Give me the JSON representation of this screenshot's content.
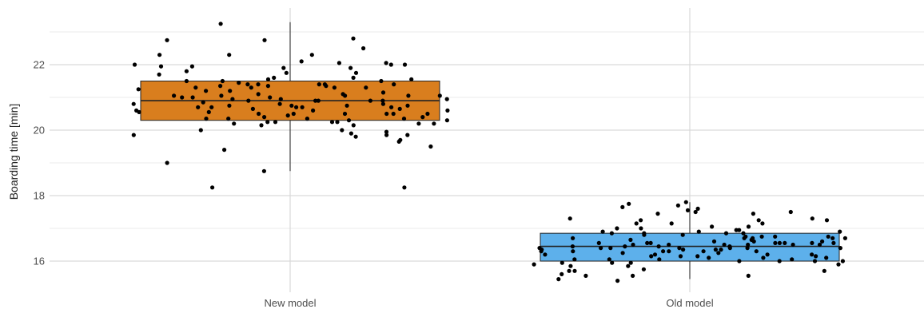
{
  "chart_data": {
    "type": "boxplot",
    "ylabel": "Boarding time [min]",
    "xlabel": "",
    "ylim": [
      15.2,
      23.8
    ],
    "yticks": [
      16,
      18,
      20,
      22
    ],
    "grid": true,
    "categories": [
      "New model",
      "Old model"
    ],
    "boxes": [
      {
        "category": "New model",
        "color": "#D97E1E",
        "whisker_low": 18.75,
        "q1": 20.3,
        "median": 20.9,
        "q3": 21.5,
        "whisker_high": 23.3
      },
      {
        "category": "Old model",
        "color": "#5DB0EB",
        "whisker_low": 15.45,
        "q1": 16.0,
        "median": 16.45,
        "q3": 16.85,
        "whisker_high": 17.8
      }
    ],
    "points": [
      {
        "category": "New model",
        "values": [
          22.05,
          20.35,
          20.25,
          20.3,
          20.75,
          21.05,
          21.5,
          21.55,
          19.8,
          21.4,
          21.3,
          21.45,
          20.8,
          21.0,
          20.9,
          21.2,
          20.7,
          21.5,
          20.75,
          19.65,
          19.0,
          20.95,
          22.5,
          21.4,
          21.35,
          20.9,
          20.4,
          19.85,
          22.75,
          20.25,
          20.7,
          21.8,
          21.0,
          20.95,
          21.3,
          20.75,
          21.05,
          20.8,
          20.9,
          20.85,
          21.0,
          21.05,
          22.0,
          20.75,
          22.1,
          20.65,
          20.15,
          22.75,
          20.9,
          21.95,
          21.9,
          21.1,
          21.6,
          18.25,
          20.65,
          20.5,
          20.4,
          19.5,
          21.55,
          20.55,
          20.7,
          21.05,
          21.1,
          20.8,
          21.5,
          23.25,
          18.75,
          20.0,
          22.05,
          21.9,
          20.7,
          19.7,
          21.35,
          22.8,
          21.25,
          20.35,
          21.6,
          20.5,
          20.0,
          19.4,
          21.75,
          20.2,
          21.3,
          20.7,
          20.2,
          21.4,
          20.6,
          21.3,
          20.25,
          21.4,
          20.5,
          20.3,
          21.05,
          20.9,
          20.95,
          20.45,
          21.95,
          22.3,
          20.5,
          22.0,
          20.6,
          19.9,
          21.7,
          20.5,
          22.3,
          20.55,
          20.25,
          19.95,
          21.2,
          18.25,
          20.35,
          19.85,
          20.15,
          21.35,
          22.0,
          20.2,
          21.75,
          20.5,
          21.15,
          20.6,
          21.4,
          20.35,
          22.3,
          19.85
        ]
      },
      {
        "category": "Old model",
        "values": [
          15.95,
          16.9,
          16.95,
          17.05,
          16.7,
          17.8,
          16.95,
          16.6,
          16.4,
          16.7,
          17.05,
          16.55,
          16.75,
          17.15,
          16.5,
          15.55,
          16.85,
          16.55,
          16.05,
          17.15,
          15.7,
          16.3,
          15.9,
          17.45,
          17.5,
          16.5,
          16.55,
          15.55,
          16.8,
          16.35,
          16.05,
          17.3,
          17.25,
          15.9,
          16.5,
          16.2,
          15.95,
          16.3,
          17.3,
          15.85,
          16.55,
          16.3,
          16.6,
          15.75,
          16.4,
          16.15,
          15.7,
          15.95,
          15.6,
          16.55,
          16.8,
          16.0,
          16.9,
          16.4,
          16.35,
          16.9,
          16.85,
          16.1,
          15.85,
          17.5,
          17.65,
          16.15,
          16.75,
          17.6,
          16.65,
          16.5,
          15.4,
          15.7,
          16.75,
          16.3,
          16.45,
          17.55,
          17.7,
          16.55,
          16.7,
          16.4,
          16.6,
          17.0,
          16.3,
          16.5,
          16.25,
          16.65,
          17.25,
          16.1,
          16.85,
          16.45,
          16.2,
          17.0,
          16.2,
          16.05,
          17.45,
          16.75,
          16.4,
          16.35,
          16.3,
          16.15,
          15.55,
          16.15,
          16.45,
          16.55,
          17.25,
          16.7,
          16.55,
          16.4,
          16.85,
          16.0,
          17.75,
          16.0,
          16.35,
          16.45,
          16.1,
          15.45,
          16.5,
          16.2,
          16.4,
          16.0,
          16.25,
          16.05,
          17.15,
          16.7
        ]
      }
    ]
  }
}
